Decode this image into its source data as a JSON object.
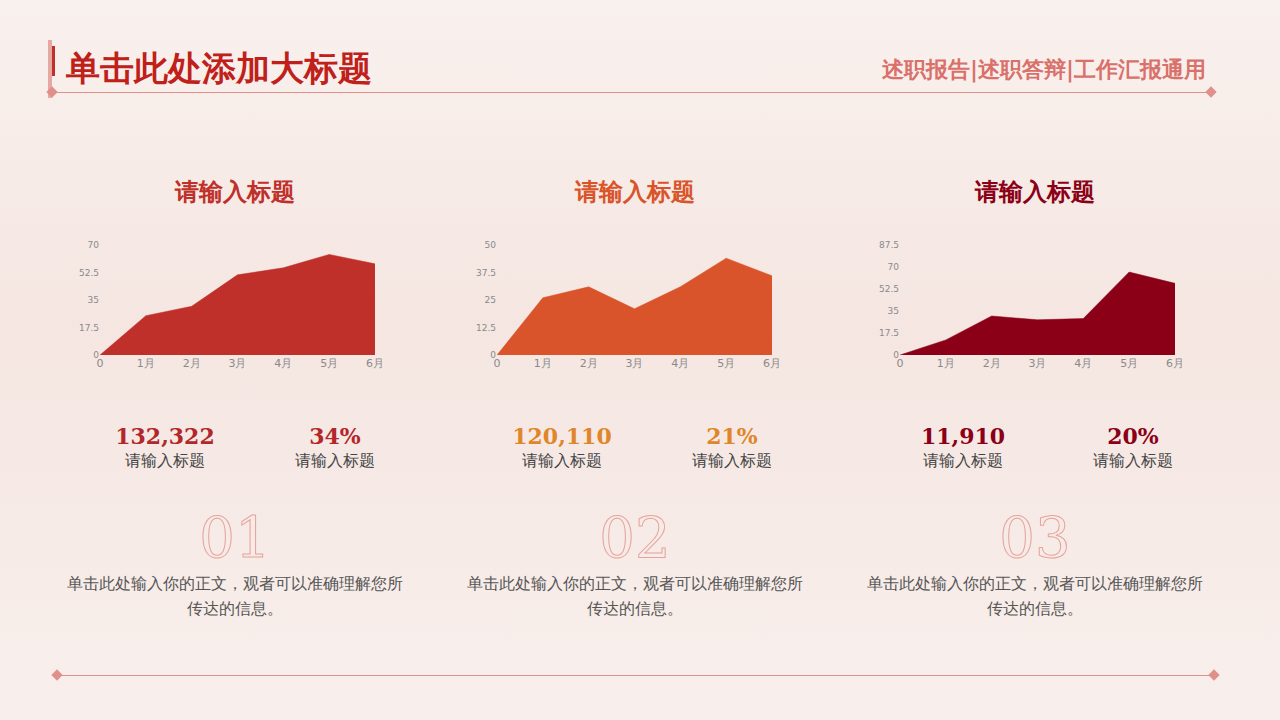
{
  "header": {
    "title": "单击此处添加大标题",
    "subtitle": "述职报告|述职答辩|工作汇报通用"
  },
  "chart_data": [
    {
      "type": "area",
      "title": "请输入标题",
      "categories": [
        "0",
        "1月",
        "2月",
        "3月",
        "4月",
        "5月",
        "6月"
      ],
      "values": [
        0,
        25,
        31,
        51,
        55.5,
        64,
        58
      ],
      "color": "#c0302a",
      "ylim": [
        0,
        70
      ],
      "yticks": [
        0,
        17.5,
        35,
        52.5,
        70
      ],
      "grid": false
    },
    {
      "type": "area",
      "title": "请输入标题",
      "categories": [
        "0",
        "1月",
        "2月",
        "3月",
        "4月",
        "5月",
        "6月"
      ],
      "values": [
        0,
        26,
        31,
        21,
        31,
        44,
        36
      ],
      "color": "#d9542a",
      "ylim": [
        0,
        50
      ],
      "yticks": [
        0,
        12.5,
        25,
        37.5,
        50
      ],
      "grid": false
    },
    {
      "type": "area",
      "title": "请输入标题",
      "categories": [
        "0",
        "1月",
        "2月",
        "3月",
        "4月",
        "5月",
        "6月"
      ],
      "values": [
        0,
        12,
        31,
        28,
        29,
        66,
        57
      ],
      "color": "#8b0016",
      "ylim": [
        0,
        87.5
      ],
      "yticks": [
        0,
        17.5,
        35,
        52.5,
        70,
        87.5
      ],
      "grid": false
    }
  ],
  "panels": [
    {
      "stats": [
        {
          "value": "132,322",
          "label": "请输入标题"
        },
        {
          "value": "34%",
          "label": "请输入标题"
        }
      ],
      "number": "01",
      "text": "单击此处输入你的正文，观者可以准确理解您所传达的信息。"
    },
    {
      "stats": [
        {
          "value": "120,110",
          "label": "请输入标题"
        },
        {
          "value": "21%",
          "label": "请输入标题"
        }
      ],
      "number": "02",
      "text": "单击此处输入你的正文，观者可以准确理解您所传达的信息。"
    },
    {
      "stats": [
        {
          "value": "11,910",
          "label": "请输入标题"
        },
        {
          "value": "20%",
          "label": "请输入标题"
        }
      ],
      "number": "03",
      "text": "单击此处输入你的正文，观者可以准确理解您所传达的信息。"
    }
  ]
}
